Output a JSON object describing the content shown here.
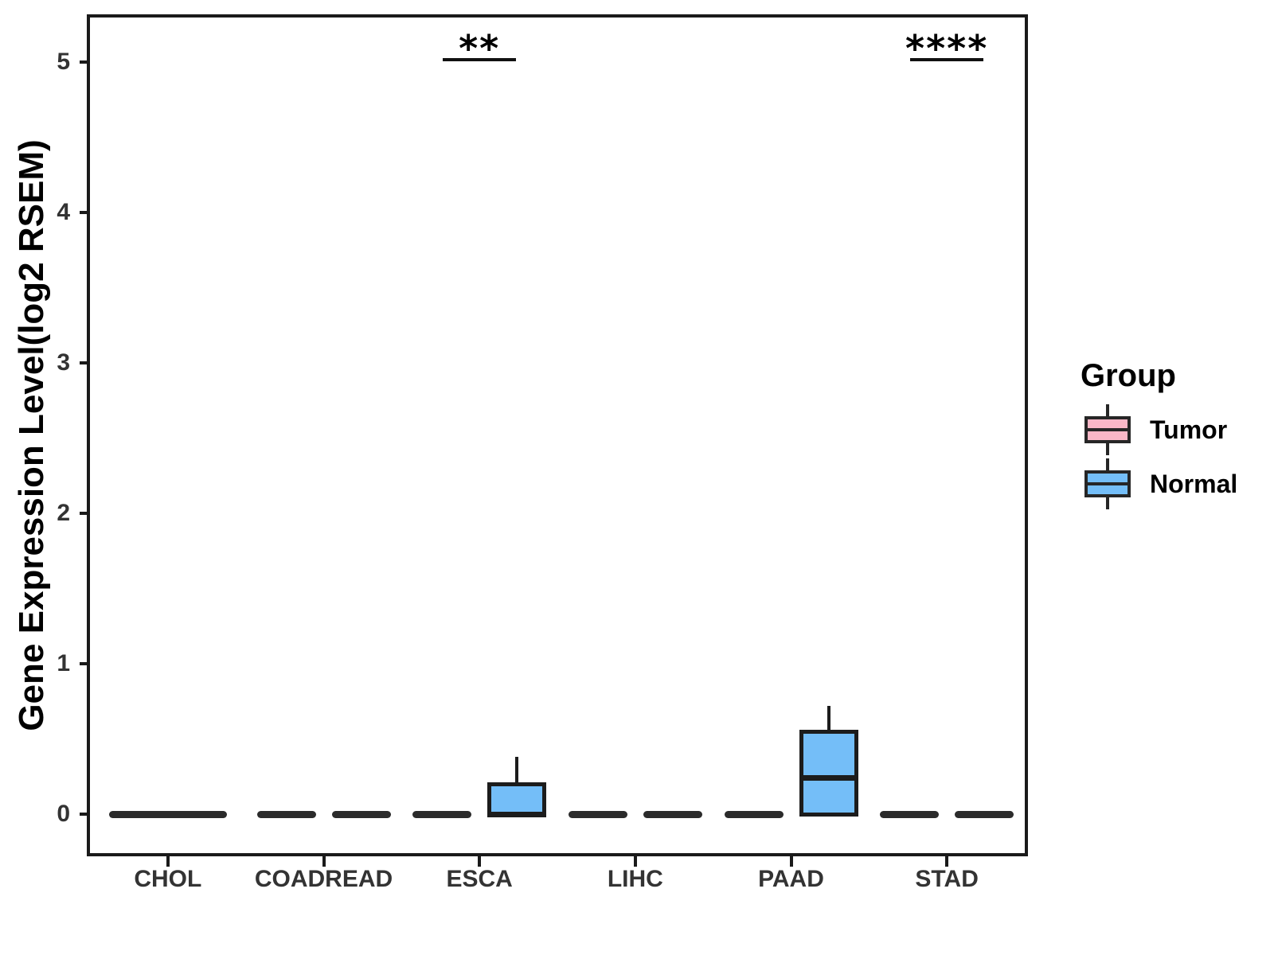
{
  "figure": {
    "background": "#ffffff",
    "y_axis": {
      "title": "Gene Expression Level(log2 RSEM)",
      "tick_labels": [
        "0",
        "1",
        "2",
        "3",
        "4",
        "5"
      ]
    },
    "x_axis": {
      "tick_labels": [
        "CHOL",
        "COADREAD",
        "ESCA",
        "LIHC",
        "PAAD",
        "STAD"
      ]
    },
    "legend": {
      "title": "Group",
      "entries": [
        {
          "label": "Tumor",
          "color": "#F9B7C7"
        },
        {
          "label": "Normal",
          "color": "#74BEF8"
        }
      ]
    }
  },
  "chart_data": {
    "type": "boxplot",
    "title": "",
    "xlabel": "",
    "ylabel": "Gene Expression Level(log2 RSEM)",
    "categories": [
      "CHOL",
      "COADREAD",
      "ESCA",
      "LIHC",
      "PAAD",
      "STAD"
    ],
    "groups": [
      "Tumor",
      "Normal"
    ],
    "yticks": [
      0,
      1,
      2,
      3,
      4,
      5
    ],
    "ylim": [
      -0.26,
      5.3
    ],
    "grid": false,
    "legend_position": "right",
    "line_color": "#1c1c1c",
    "series": [
      {
        "name": "Tumor",
        "color": "#F9B7C7",
        "boxes": [
          {
            "category": "CHOL",
            "min": 0,
            "q1": 0,
            "median": 0,
            "q3": 0,
            "max": 0
          },
          {
            "category": "COADREAD",
            "min": 0,
            "q1": 0,
            "median": 0,
            "q3": 0,
            "max": 0
          },
          {
            "category": "ESCA",
            "min": 0,
            "q1": 0,
            "median": 0,
            "q3": 0,
            "max": 0
          },
          {
            "category": "LIHC",
            "min": 0,
            "q1": 0,
            "median": 0,
            "q3": 0,
            "max": 0
          },
          {
            "category": "PAAD",
            "min": 0,
            "q1": 0,
            "median": 0,
            "q3": 0,
            "max": 0
          },
          {
            "category": "STAD",
            "min": 0,
            "q1": 0,
            "median": 0,
            "q3": 0,
            "max": 0
          }
        ]
      },
      {
        "name": "Normal",
        "color": "#74BEF8",
        "boxes": [
          {
            "category": "CHOL",
            "min": 0,
            "q1": 0,
            "median": 0,
            "q3": 0,
            "max": 0
          },
          {
            "category": "COADREAD",
            "min": 0,
            "q1": 0,
            "median": 0,
            "q3": 0,
            "max": 0
          },
          {
            "category": "ESCA",
            "min": 0,
            "q1": 0,
            "median": 0,
            "q3": 0.2,
            "max": 0.38
          },
          {
            "category": "LIHC",
            "min": 0,
            "q1": 0,
            "median": 0,
            "q3": 0,
            "max": 0
          },
          {
            "category": "PAAD",
            "min": 0,
            "q1": 0,
            "median": 0.24,
            "q3": 0.55,
            "max": 0.72
          },
          {
            "category": "STAD",
            "min": 0,
            "q1": 0,
            "median": 0,
            "q3": 0,
            "max": 0
          }
        ]
      }
    ],
    "significance": [
      {
        "category": "ESCA",
        "label": "**"
      },
      {
        "category": "STAD",
        "label": "****"
      }
    ],
    "zero_overlap_categories": [
      "CHOL"
    ]
  }
}
